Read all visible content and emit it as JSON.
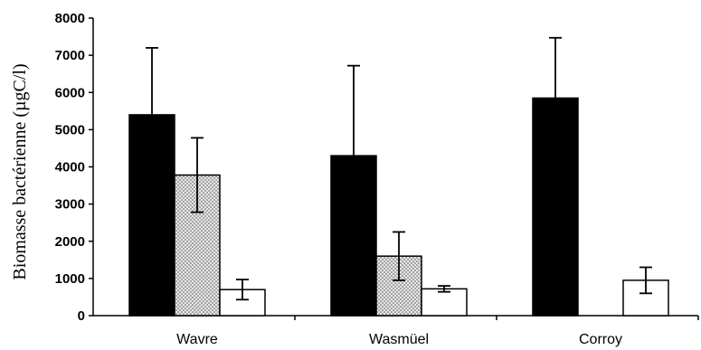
{
  "chart_data": {
    "type": "bar",
    "title": "",
    "xlabel": "",
    "ylabel": "Biomasse bactérienne (µgC/l)",
    "ylim": [
      0,
      8000
    ],
    "yticks": [
      0,
      1000,
      2000,
      3000,
      4000,
      5000,
      6000,
      7000,
      8000
    ],
    "categories": [
      "Wavre",
      "Wasmüel",
      "Corroy"
    ],
    "series": [
      {
        "values": [
          5400,
          4300,
          5850
        ],
        "errors": [
          1800,
          2420,
          1620
        ],
        "fill": "#000000",
        "pattern": "solid"
      },
      {
        "values": [
          3780,
          1600,
          null
        ],
        "errors": [
          1000,
          650,
          null
        ],
        "fill": "#d9d9d9",
        "pattern": "dotted"
      },
      {
        "values": [
          700,
          720,
          950
        ],
        "errors": [
          270,
          80,
          350
        ],
        "fill": "#ffffff",
        "pattern": "hollow"
      }
    ],
    "grid": false,
    "legend": "none"
  }
}
